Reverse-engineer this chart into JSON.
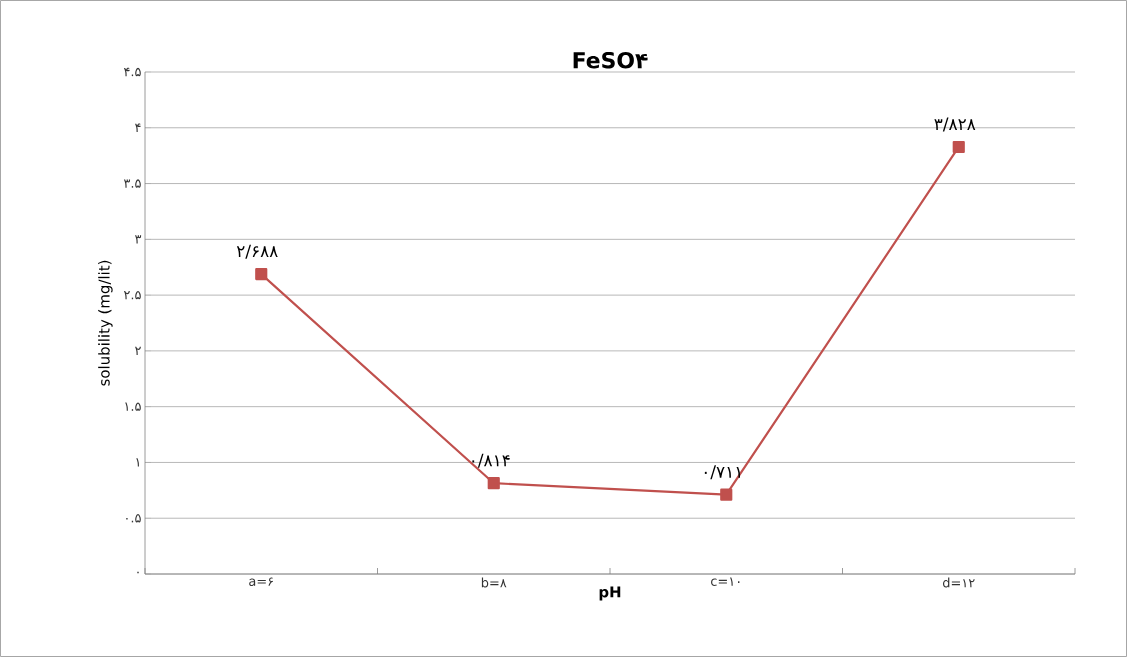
{
  "chart_data": {
    "type": "line",
    "title": "FeSO۴",
    "xlabel": "pH",
    "ylabel": "solubility (mg/lit)",
    "categories": [
      "a=۶",
      "b=۸",
      "c=۱۰",
      "d=۱۲"
    ],
    "series": [
      {
        "color": "#c0504d",
        "values": [
          2.688,
          0.814,
          0.711,
          3.828
        ],
        "value_labels": [
          "۲/۶۸۸",
          "۰/۸۱۴",
          "۰/۷۱۱",
          "۳/۸۲۸"
        ]
      }
    ],
    "ylim": [
      0,
      4.5
    ],
    "yticks": [
      {
        "value": 0,
        "label": "۰"
      },
      {
        "value": 0.5,
        "label": "۰.۵"
      },
      {
        "value": 1,
        "label": "۱"
      },
      {
        "value": 1.5,
        "label": "۱.۵"
      },
      {
        "value": 2,
        "label": "۲"
      },
      {
        "value": 2.5,
        "label": "۲.۵"
      },
      {
        "value": 3,
        "label": "۳"
      },
      {
        "value": 3.5,
        "label": "۳.۵"
      },
      {
        "value": 4,
        "label": "۴"
      },
      {
        "value": 4.5,
        "label": "۴.۵"
      }
    ],
    "grid": "y",
    "marker": "square",
    "line_style": "solid"
  }
}
